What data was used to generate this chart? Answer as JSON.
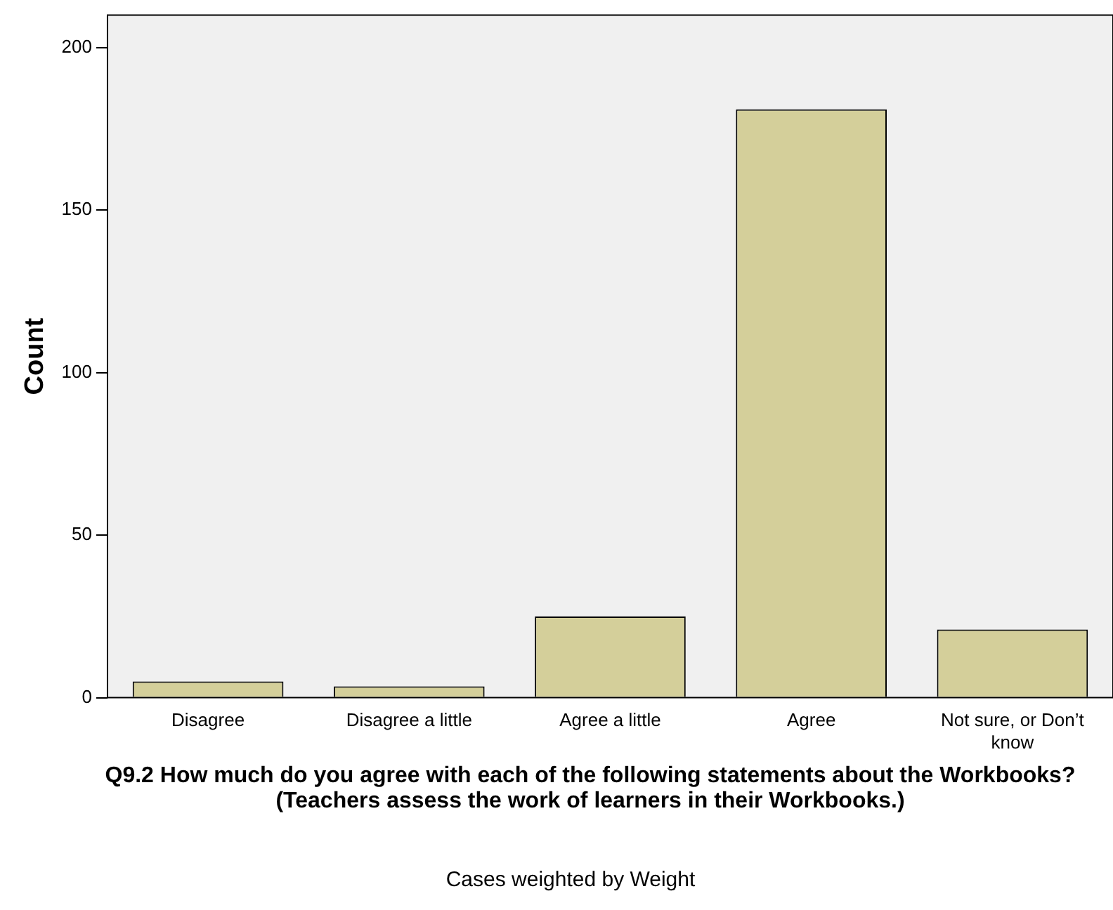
{
  "chart_data": {
    "type": "bar",
    "xlabel": "Q9.2 How much do you agree with each of the following statements about the Workbooks? (Teachers assess the work of learners in their Workbooks.)",
    "ylabel": "Count",
    "categories": [
      "Disagree",
      "Disagree a little",
      "Agree a little",
      "Agree",
      "Not sure, or Don’t know"
    ],
    "values": [
      5,
      3.5,
      25,
      181,
      21
    ],
    "color": "#d4cf9a",
    "ylim": [
      0,
      210
    ],
    "yticks": [
      0,
      50,
      100,
      150,
      200
    ],
    "grid": false,
    "legend": false,
    "annotations": [
      "Cases weighted by Weight"
    ]
  }
}
